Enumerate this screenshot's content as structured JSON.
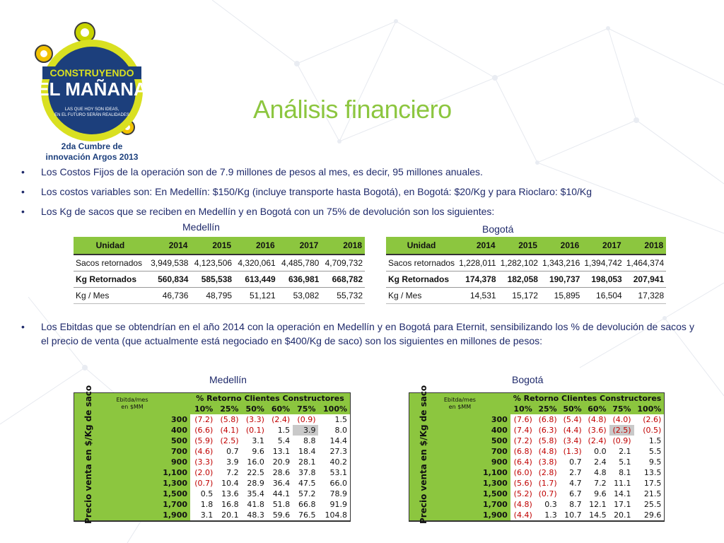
{
  "logo": {
    "line1": "CONSTRUYENDO",
    "line2": "EL MAÑANA",
    "tag1": "LAS QUE HOY SON IDEAS,",
    "tag2": "EN EL FUTURO SERÁN REALIDADES",
    "caption1": "2da Cumbre de",
    "caption2": "innovación Argos 2013"
  },
  "title": "Análisis financiero",
  "bullets": [
    "Los Costos Fijos de la operación son de 7.9 millones de pesos al mes, es decir, 95 millones anuales.",
    "Los costos variables son: En Medellín: $150/Kg (incluye transporte hasta Bogotá), en Bogotá: $20/Kg y para Rioclaro: $10/Kg",
    "Los Kg de sacos que se reciben en Medellín y en Bogotá con un 75% de devolución son los siguientes:"
  ],
  "bullet4": "Los Ebitdas que se obtendrían en el año 2014 con la operación en Medellín y en Bogotá para Eternit, sensibilizando los % de devolución de sacos y el precio de venta (que actualmente está negociado en $400/Kg de saco) son los siguientes en millones de pesos:",
  "kg_tables": {
    "medellin": {
      "title": "Medellín",
      "headers": [
        "Unidad",
        "2014",
        "2015",
        "2016",
        "2017",
        "2018"
      ],
      "rows": [
        [
          "Sacos retornados",
          "3,949,538",
          "4,123,506",
          "4,320,061",
          "4,485,780",
          "4,709,732"
        ],
        [
          "Kg Retornados",
          "560,834",
          "585,538",
          "613,449",
          "636,981",
          "668,782"
        ],
        [
          "Kg / Mes",
          "46,736",
          "48,795",
          "51,121",
          "53,082",
          "55,732"
        ]
      ]
    },
    "bogota": {
      "title": "Bogotá",
      "headers": [
        "Unidad",
        "2014",
        "2015",
        "2016",
        "2017",
        "2018"
      ],
      "rows": [
        [
          "Sacos retornados",
          "1,228,011",
          "1,282,102",
          "1,343,216",
          "1,394,742",
          "1,464,374"
        ],
        [
          "Kg Retornados",
          "174,378",
          "182,058",
          "190,737",
          "198,053",
          "207,941"
        ],
        [
          "Kg / Mes",
          "14,531",
          "15,172",
          "15,895",
          "16,504",
          "17,328"
        ]
      ]
    }
  },
  "ebitda_tables": {
    "medellin": {
      "title": "Medellín",
      "corner": [
        "Ebitda/mes",
        "en $MM"
      ],
      "return_header": "% Retorno  Clientes Constructores",
      "price_label": "Precio venta en $/Kg de saco",
      "percents": [
        "10%",
        "25%",
        "50%",
        "60%",
        "75%",
        "100%"
      ],
      "prices": [
        "300",
        "400",
        "500",
        "700",
        "900",
        "1,100",
        "1,300",
        "1,500",
        "1,700",
        "1,900"
      ],
      "rows": [
        [
          "(7.2)",
          "(5.8)",
          "(3.3)",
          "(2.4)",
          "(0.9)",
          "1.5"
        ],
        [
          "(6.6)",
          "(4.1)",
          "(0.1)",
          "1.5",
          "3.9",
          "8.0"
        ],
        [
          "(5.9)",
          "(2.5)",
          "3.1",
          "5.4",
          "8.8",
          "14.4"
        ],
        [
          "(4.6)",
          "0.7",
          "9.6",
          "13.1",
          "18.4",
          "27.3"
        ],
        [
          "(3.3)",
          "3.9",
          "16.0",
          "20.9",
          "28.1",
          "40.2"
        ],
        [
          "(2.0)",
          "7.2",
          "22.5",
          "28.6",
          "37.8",
          "53.1"
        ],
        [
          "(0.7)",
          "10.4",
          "28.9",
          "36.4",
          "47.5",
          "66.0"
        ],
        [
          "0.5",
          "13.6",
          "35.4",
          "44.1",
          "57.2",
          "78.9"
        ],
        [
          "1.8",
          "16.8",
          "41.8",
          "51.8",
          "66.8",
          "91.9"
        ],
        [
          "3.1",
          "20.1",
          "48.3",
          "59.6",
          "76.5",
          "104.8"
        ]
      ],
      "highlight": [
        1,
        4
      ]
    },
    "bogota": {
      "title": "Bogotá",
      "corner": [
        "Ebitda/mes",
        "en $MM"
      ],
      "return_header": "% Retorno  Clientes Constructores",
      "price_label": "Precio venta en $/Kg de saco",
      "percents": [
        "10%",
        "25%",
        "50%",
        "60%",
        "75%",
        "100%"
      ],
      "prices": [
        "300",
        "400",
        "500",
        "700",
        "900",
        "1,100",
        "1,300",
        "1,500",
        "1,700",
        "1,900"
      ],
      "rows": [
        [
          "(7.6)",
          "(6.8)",
          "(5.4)",
          "(4.8)",
          "(4.0)",
          "(2.6)"
        ],
        [
          "(7.4)",
          "(6.3)",
          "(4.4)",
          "(3.6)",
          "(2.5)",
          "(0.5)"
        ],
        [
          "(7.2)",
          "(5.8)",
          "(3.4)",
          "(2.4)",
          "(0.9)",
          "1.5"
        ],
        [
          "(6.8)",
          "(4.8)",
          "(1.3)",
          "0.0",
          "2.1",
          "5.5"
        ],
        [
          "(6.4)",
          "(3.8)",
          "0.7",
          "2.4",
          "5.1",
          "9.5"
        ],
        [
          "(6.0)",
          "(2.8)",
          "2.7",
          "4.8",
          "8.1",
          "13.5"
        ],
        [
          "(5.6)",
          "(1.7)",
          "4.7",
          "7.2",
          "11.1",
          "17.5"
        ],
        [
          "(5.2)",
          "(0.7)",
          "6.7",
          "9.6",
          "14.1",
          "21.5"
        ],
        [
          "(4.8)",
          "0.3",
          "8.7",
          "12.1",
          "17.1",
          "25.5"
        ],
        [
          "(4.4)",
          "1.3",
          "10.7",
          "14.5",
          "20.1",
          "29.6"
        ]
      ],
      "highlight": [
        1,
        4
      ]
    }
  },
  "colors": {
    "accent": "#8cc63f",
    "navy": "#1f2a6b",
    "negative": "#c00000",
    "highlight": "#c9c9c9"
  }
}
